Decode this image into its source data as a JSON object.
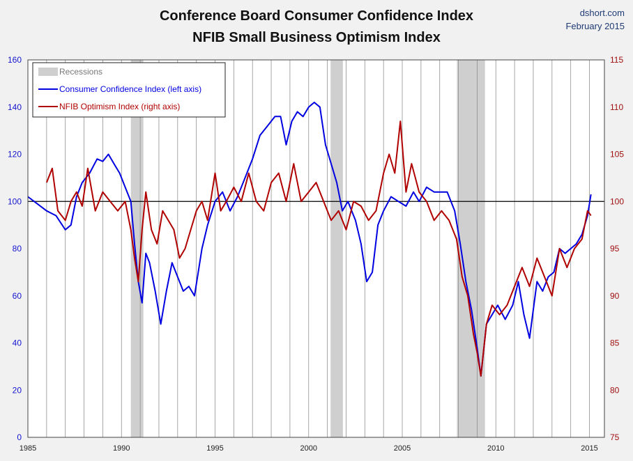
{
  "header": {
    "title_line1": "Conference Board Consumer Confidence Index",
    "title_line2": "NFIB Small Business Optimism Index",
    "source": "dshort.com",
    "date": "February 2015"
  },
  "colors": {
    "confidence": "#0000e0",
    "nfib": "#b00000",
    "recession": "#cfcfcf",
    "plot_bg": "#ffffff",
    "grid": "#909090"
  },
  "chart_data": {
    "type": "line",
    "title": "Conference Board Consumer Confidence Index / NFIB Small Business Optimism Index",
    "xlim": [
      1985,
      2015.8
    ],
    "x_ticks": [
      1985,
      1990,
      1995,
      2000,
      2005,
      2010,
      2015
    ],
    "y_left": {
      "label": "Consumer Confidence Index",
      "lim": [
        0,
        160
      ],
      "ticks": [
        0,
        20,
        40,
        60,
        80,
        100,
        120,
        140,
        160
      ]
    },
    "y_right": {
      "label": "NFIB Optimism Index",
      "lim": [
        75,
        115
      ],
      "ticks": [
        75,
        80,
        85,
        90,
        95,
        100,
        105,
        110,
        115
      ]
    },
    "reference_line": {
      "axis": "right",
      "value": 100
    },
    "legend": {
      "position": "top-left",
      "entries": [
        "Recessions",
        "Consumer Confidence Index (left axis)",
        "NFIB Optimism Index (right axis)"
      ]
    },
    "recessions": [
      [
        1990.5,
        1991.17
      ],
      [
        2001.17,
        2001.83
      ],
      [
        2007.92,
        2009.42
      ]
    ],
    "series": [
      {
        "name": "Consumer Confidence Index (left axis)",
        "axis": "left",
        "x": [
          1985,
          1985.5,
          1986,
          1986.5,
          1987,
          1987.3,
          1987.6,
          1987.9,
          1988.3,
          1988.7,
          1989,
          1989.3,
          1989.6,
          1989.9,
          1990.2,
          1990.5,
          1990.7,
          1990.9,
          1991.1,
          1991.3,
          1991.5,
          1991.8,
          1992.1,
          1992.4,
          1992.7,
          1993,
          1993.3,
          1993.6,
          1993.9,
          1994.3,
          1994.6,
          1995,
          1995.4,
          1995.8,
          1996.2,
          1996.6,
          1997,
          1997.4,
          1997.8,
          1998.2,
          1998.5,
          1998.8,
          1999.1,
          1999.4,
          1999.7,
          2000,
          2000.3,
          2000.6,
          2000.9,
          2001.2,
          2001.5,
          2001.8,
          2002.1,
          2002.5,
          2002.8,
          2003.1,
          2003.4,
          2003.7,
          2004,
          2004.4,
          2004.8,
          2005.2,
          2005.6,
          2005.9,
          2006.3,
          2006.7,
          2007,
          2007.4,
          2007.8,
          2008.1,
          2008.4,
          2008.7,
          2009,
          2009.2,
          2009.5,
          2009.8,
          2010.1,
          2010.5,
          2010.9,
          2011.2,
          2011.5,
          2011.8,
          2012.2,
          2012.5,
          2012.8,
          2013.1,
          2013.4,
          2013.7,
          2014,
          2014.3,
          2014.6,
          2014.9,
          2015.08
        ],
        "y": [
          102,
          99,
          96,
          94,
          88,
          90,
          102,
          108,
          112,
          118,
          117,
          120,
          116,
          112,
          106,
          100,
          82,
          66,
          57,
          78,
          74,
          62,
          48,
          62,
          74,
          68,
          62,
          64,
          60,
          80,
          90,
          100,
          104,
          96,
          102,
          110,
          118,
          128,
          132,
          136,
          136,
          124,
          134,
          138,
          136,
          140,
          142,
          140,
          124,
          116,
          108,
          96,
          100,
          92,
          82,
          66,
          70,
          90,
          96,
          102,
          100,
          98,
          104,
          100,
          106,
          104,
          104,
          104,
          96,
          82,
          66,
          54,
          38,
          26,
          48,
          52,
          56,
          50,
          56,
          66,
          52,
          42,
          66,
          62,
          68,
          70,
          80,
          78,
          80,
          82,
          86,
          94,
          103
        ]
      },
      {
        "name": "NFIB Optimism Index (right axis)",
        "axis": "right",
        "x": [
          1986,
          1986.3,
          1986.6,
          1987,
          1987.3,
          1987.6,
          1987.9,
          1988.2,
          1988.6,
          1989,
          1989.4,
          1989.8,
          1990.2,
          1990.5,
          1990.7,
          1990.9,
          1991.1,
          1991.3,
          1991.6,
          1991.9,
          1992.2,
          1992.5,
          1992.8,
          1993.1,
          1993.4,
          1993.7,
          1994,
          1994.3,
          1994.6,
          1995,
          1995.3,
          1995.6,
          1996,
          1996.4,
          1996.8,
          1997.2,
          1997.6,
          1998,
          1998.4,
          1998.8,
          1999.2,
          1999.6,
          2000,
          2000.4,
          2000.8,
          2001.2,
          2001.6,
          2002,
          2002.4,
          2002.8,
          2003.2,
          2003.6,
          2004,
          2004.3,
          2004.6,
          2004.9,
          2005.2,
          2005.5,
          2005.9,
          2006.3,
          2006.7,
          2007.1,
          2007.5,
          2007.9,
          2008.2,
          2008.5,
          2008.8,
          2009,
          2009.2,
          2009.5,
          2009.8,
          2010.2,
          2010.6,
          2011,
          2011.4,
          2011.8,
          2012.2,
          2012.6,
          2013,
          2013.4,
          2013.8,
          2014.2,
          2014.6,
          2014.9,
          2015.08
        ],
        "y": [
          102,
          103.5,
          99,
          98,
          100,
          101,
          99.5,
          103.5,
          99,
          101,
          100,
          99,
          100,
          97,
          94,
          91.5,
          97,
          101,
          97,
          95.5,
          99,
          98,
          97,
          94,
          95,
          97,
          99,
          100,
          98,
          103,
          99,
          100,
          101.5,
          100,
          103,
          100,
          99,
          102,
          103,
          100,
          104,
          100,
          101,
          102,
          100,
          98,
          99,
          97,
          100,
          99.5,
          98,
          99,
          103,
          105,
          103,
          108.5,
          101,
          104,
          101,
          100,
          98,
          99,
          98,
          96,
          92,
          90,
          86,
          84,
          81.5,
          87,
          89,
          88,
          89,
          91,
          93,
          91,
          94,
          92,
          90,
          95,
          93,
          95,
          96,
          99,
          98.5
        ]
      }
    ]
  }
}
